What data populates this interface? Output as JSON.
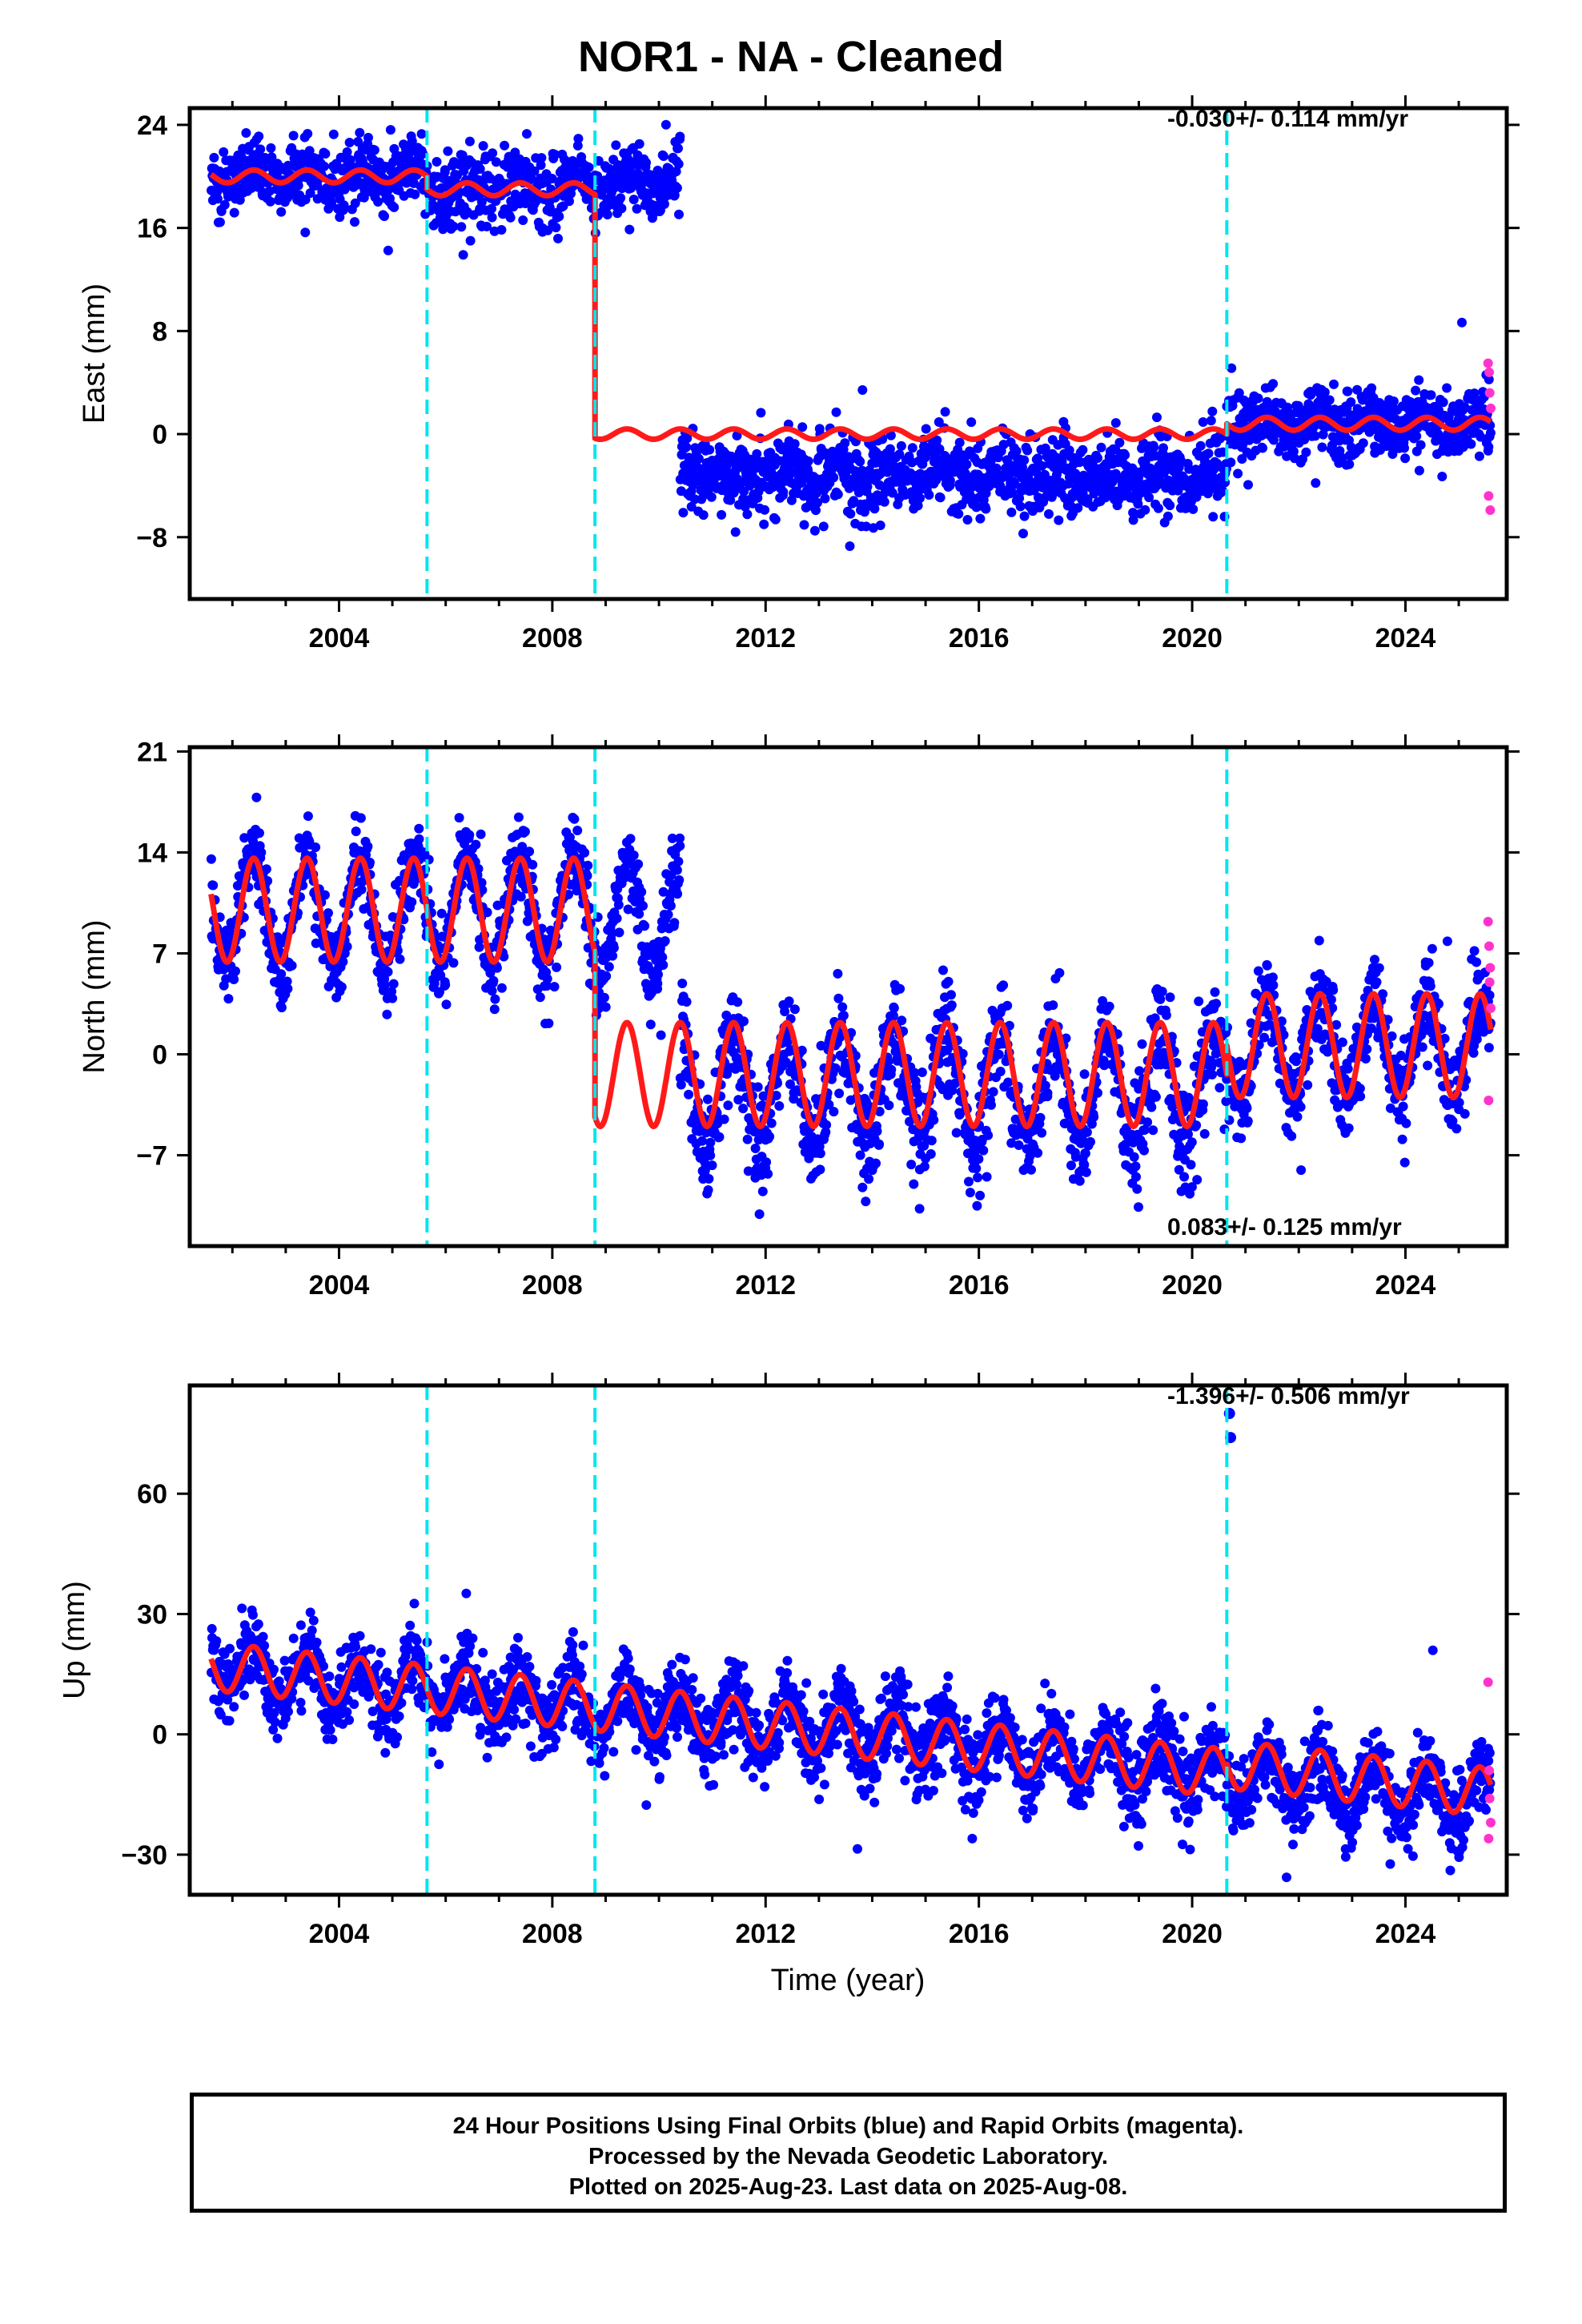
{
  "title": "NOR1  - NA - Cleaned",
  "xlabel": "Time (year)",
  "footer": {
    "line1": "24 Hour Positions Using Final Orbits (blue) and Rapid Orbits (magenta).",
    "line2": "Processed by the Nevada Geodetic Laboratory.",
    "line3": "Plotted on 2025-Aug-23. Last data on 2025-Aug-08."
  },
  "colors": {
    "final_orbits": "#0000ff",
    "rapid_orbits": "#ff33cc",
    "model": "#ff1a1a",
    "events": "#00e5ee"
  },
  "chart_data": [
    {
      "type": "scatter",
      "component": "east",
      "ylabel": "East (mm)",
      "rate_label": "-0.030+/- 0.114 mm/yr",
      "rate_position": "top-right",
      "xlim": [
        2001.2,
        2025.9
      ],
      "ylim": [
        -12.8,
        25.3
      ],
      "x_ticks": [
        2004,
        2008,
        2012,
        2016,
        2020,
        2024
      ],
      "y_ticks": [
        24,
        16,
        8,
        0,
        -8
      ],
      "event_lines": [
        2005.65,
        2008.8,
        2020.65
      ],
      "data_span": [
        2001.6,
        2025.6
      ],
      "segments": [
        {
          "x_start": 2001.6,
          "x_end": 2005.65,
          "level": 20.0,
          "amplitude": 0.6,
          "scatter": 1.2
        },
        {
          "x_start": 2005.65,
          "x_end": 2008.8,
          "level": 19.0,
          "amplitude": 0.6,
          "scatter": 1.4
        },
        {
          "x_start": 2008.8,
          "x_end": 2010.4,
          "level": 19.5,
          "amplitude": 0.6,
          "scatter": 1.3
        },
        {
          "x_start": 2010.4,
          "x_end": 2020.65,
          "level": -3.2,
          "amplitude": 0.6,
          "scatter": 1.5
        },
        {
          "x_start": 2020.65,
          "x_end": 2025.6,
          "level": 0.8,
          "amplitude": 0.6,
          "scatter": 1.3
        }
      ],
      "model_segments": [
        {
          "x_start": 2001.6,
          "x_end": 2005.65,
          "level": 20.0,
          "amplitude": 0.5
        },
        {
          "x_start": 2005.65,
          "x_end": 2008.8,
          "level": 19.0,
          "amplitude": 0.5
        },
        {
          "x_start": 2008.8,
          "x_end": 2020.65,
          "level": 0.0,
          "amplitude": 0.4
        },
        {
          "x_start": 2020.65,
          "x_end": 2025.6,
          "level": 0.8,
          "amplitude": 0.5
        }
      ],
      "rapid_points": {
        "x": [
          2025.55,
          2025.57,
          2025.58,
          2025.6,
          2025.56,
          2025.59
        ],
        "y": [
          5.5,
          4.8,
          3.2,
          2.0,
          -4.8,
          -5.9
        ]
      }
    },
    {
      "type": "scatter",
      "component": "north",
      "ylabel": "North (mm)",
      "rate_label": "0.083+/- 0.125 mm/yr",
      "rate_position": "bottom-right",
      "xlim": [
        2001.2,
        2025.9
      ],
      "ylim": [
        -13.3,
        21.3
      ],
      "x_ticks": [
        2004,
        2008,
        2012,
        2016,
        2020,
        2024
      ],
      "y_ticks": [
        21,
        14,
        7,
        0,
        -7
      ],
      "event_lines": [
        2005.65,
        2008.8,
        2020.65
      ],
      "data_span": [
        2001.6,
        2025.6
      ],
      "segments": [
        {
          "x_start": 2001.6,
          "x_end": 2008.8,
          "level": 10.0,
          "amplitude": 3.8,
          "scatter": 1.5
        },
        {
          "x_start": 2008.8,
          "x_end": 2010.4,
          "level": 9.5,
          "amplitude": 3.8,
          "scatter": 1.5
        },
        {
          "x_start": 2010.4,
          "x_end": 2020.65,
          "level": -2.5,
          "amplitude": 4.0,
          "scatter": 1.8
        },
        {
          "x_start": 2020.65,
          "x_end": 2025.6,
          "level": 0.5,
          "amplitude": 3.6,
          "scatter": 1.6
        }
      ],
      "model_segments": [
        {
          "x_start": 2001.6,
          "x_end": 2008.8,
          "level": 10.0,
          "amplitude": 3.6
        },
        {
          "x_start": 2008.8,
          "x_end": 2020.65,
          "level": -1.4,
          "amplitude": 3.6
        },
        {
          "x_start": 2020.65,
          "x_end": 2025.6,
          "level": 0.6,
          "amplitude": 3.6
        }
      ],
      "rapid_points": {
        "x": [
          2025.55,
          2025.57,
          2025.58,
          2025.6,
          2025.56,
          2025.59
        ],
        "y": [
          9.2,
          7.5,
          5.0,
          3.2,
          -3.2,
          6.0
        ]
      }
    },
    {
      "type": "scatter",
      "component": "up",
      "ylabel": "Up (mm)",
      "rate_label": "-1.396+/- 0.506 mm/yr",
      "rate_position": "top-right",
      "xlim": [
        2001.2,
        2025.9
      ],
      "ylim": [
        -40,
        87
      ],
      "x_ticks": [
        2004,
        2008,
        2012,
        2016,
        2020,
        2024
      ],
      "y_ticks": [
        60,
        30,
        0,
        -30
      ],
      "event_lines": [
        2005.65,
        2008.8,
        2020.65
      ],
      "data_span": [
        2001.6,
        2025.6
      ],
      "segments": [
        {
          "x_start": 2001.6,
          "x_end": 2020.65,
          "level": 17.0,
          "trend": -1.4,
          "amplitude": 6.5,
          "scatter": 5.0
        },
        {
          "x_start": 2020.65,
          "x_end": 2025.6,
          "level": -10.0,
          "trend": -1.4,
          "amplitude": 6.5,
          "scatter": 5.0
        }
      ],
      "model_segments": [
        {
          "x_start": 2001.6,
          "x_end": 2020.65,
          "level": 17.0,
          "trend": -1.4,
          "amplitude": 6.0
        },
        {
          "x_start": 2020.65,
          "x_end": 2025.6,
          "level": -7.5,
          "trend": -1.4,
          "amplitude": 6.0
        }
      ],
      "outliers": {
        "x": [
          2020.7,
          2020.72
        ],
        "y": [
          80,
          74
        ]
      },
      "rapid_points": {
        "x": [
          2025.55,
          2025.57,
          2025.58,
          2025.6,
          2025.56
        ],
        "y": [
          13,
          -9,
          -16,
          -22,
          -26
        ]
      }
    }
  ]
}
